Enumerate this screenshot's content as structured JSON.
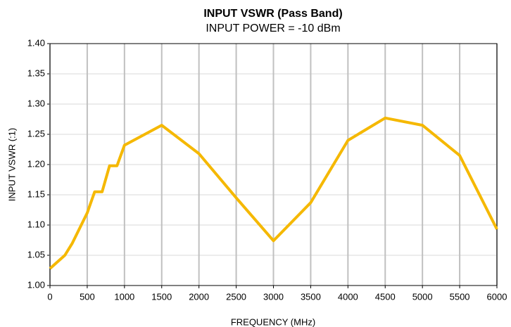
{
  "chart_data": {
    "type": "line",
    "title": "INPUT VSWR (Pass Band)",
    "subtitle": "INPUT POWER = -10 dBm",
    "x_label": "FREQUENCY (MHz)",
    "y_label": "INPUT VSWR (:1)",
    "x": [
      0,
      200,
      300,
      500,
      600,
      700,
      800,
      900,
      1000,
      1500,
      2000,
      2500,
      3000,
      3500,
      4000,
      4500,
      5000,
      5500,
      6000
    ],
    "series": [
      {
        "color": "#f5b800",
        "values": [
          1.028,
          1.05,
          1.07,
          1.12,
          1.155,
          1.155,
          1.198,
          1.198,
          1.232,
          1.265,
          1.218,
          1.145,
          1.074,
          1.137,
          1.24,
          1.277,
          1.265,
          1.215,
          1.093
        ]
      }
    ],
    "xlim": [
      0,
      6000
    ],
    "xticks": [
      0,
      500,
      1000,
      1500,
      2000,
      2500,
      3000,
      3500,
      4000,
      4500,
      5000,
      5500,
      6000
    ],
    "ylim": [
      1.0,
      1.4
    ],
    "yticks": [
      {
        "value": 1.0,
        "label": "1.00"
      },
      1.05,
      {
        "value": 1.1,
        "label": "1.10"
      },
      1.15,
      {
        "value": 1.2,
        "label": "1.20"
      },
      1.25,
      {
        "value": 1.3,
        "label": "1.30"
      },
      1.35,
      {
        "value": 1.4,
        "label": "1.40"
      }
    ],
    "grid": true
  }
}
